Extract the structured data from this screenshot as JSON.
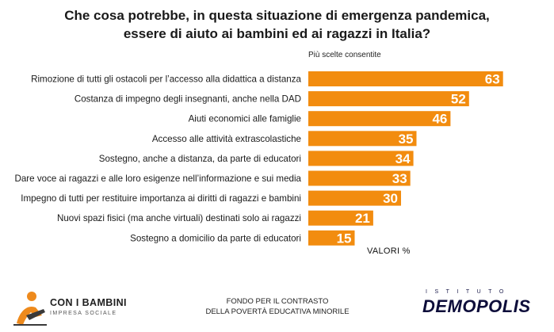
{
  "chart_data": {
    "type": "bar",
    "orientation": "horizontal",
    "title_line1": "Che cosa potrebbe, in questa situazione di emergenza pandemica,",
    "title_line2": "essere di aiuto ai bambini ed ai ragazzi in Italia?",
    "subtitle": "Più scelte consentite",
    "unit_note": "VALORI %",
    "categories": [
      "Rimozione di tutti gli ostacoli per l’accesso alla didattica a distanza",
      "Costanza di impegno degli insegnanti, anche nella DAD",
      "Aiuti economici alle famiglie",
      "Accesso alle attività extrascolastiche",
      "Sostegno, anche a distanza, da parte di educatori",
      "Dare voce ai ragazzi e alle loro esigenze nell’informazione e sui media",
      "Impegno di tutti per restituire importanza ai diritti di ragazzi e bambini",
      "Nuovi spazi fisici (ma anche virtuali) destinati solo ai ragazzi",
      "Sostegno a domicilio da parte di educatori"
    ],
    "values": [
      63,
      52,
      46,
      35,
      34,
      33,
      30,
      21,
      15
    ],
    "xlim": [
      0,
      65
    ],
    "bar_color": "#F28C0F",
    "grid": false,
    "legend": "none"
  },
  "footer": {
    "brand_name": "CON I BAMBINI",
    "brand_sub": "IMPRESA SOCIALE",
    "center_line1": "FONDO PER IL CONTRASTO",
    "center_line2": "DELLA POVERTÀ EDUCATIVA MINORILE",
    "istituto": "ISTITUTO",
    "demopolis": "DEMOPOLIS"
  }
}
